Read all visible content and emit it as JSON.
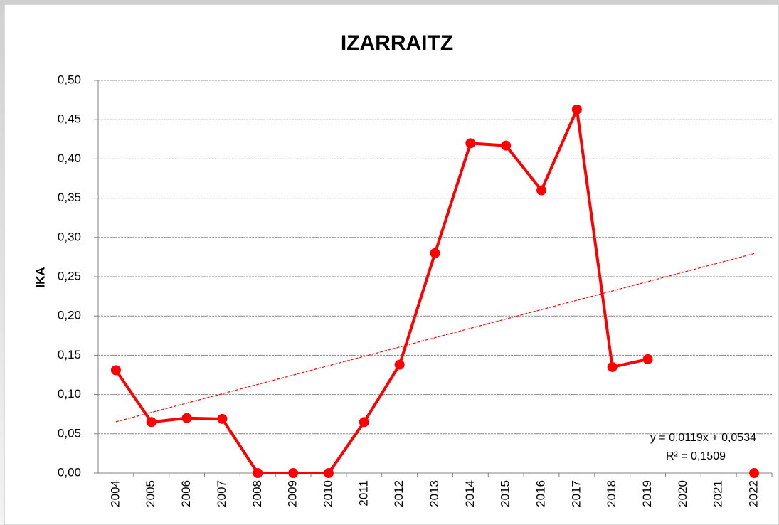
{
  "chart_data": {
    "type": "line",
    "title": "IZARRAITZ",
    "y_label": "IKA",
    "categories": [
      "2004",
      "2005",
      "2006",
      "2007",
      "2008",
      "2009",
      "2010",
      "2011",
      "2012",
      "2013",
      "2014",
      "2015",
      "2016",
      "2017",
      "2018",
      "2019",
      "2020",
      "2021",
      "2022"
    ],
    "series": [
      {
        "name": "IKA",
        "color": "#ff0000",
        "values": [
          0.131,
          0.065,
          0.07,
          0.069,
          0,
          0,
          0,
          0.065,
          0.138,
          0.28,
          0.42,
          0.417,
          0.36,
          0.463,
          0.135,
          0.145,
          null,
          null,
          0
        ]
      }
    ],
    "trendline": {
      "color": "#ff0000",
      "start": 0.0653,
      "end": 0.2795,
      "equation": "y = 0,0119x + 0,0534",
      "r2": "R² = 0,1509"
    },
    "ylim": [
      0,
      0.5
    ],
    "yticks": [
      {
        "value": 0,
        "label": "0,00"
      },
      {
        "value": 0.05,
        "label": "0,05"
      },
      {
        "value": 0.1,
        "label": "0,10"
      },
      {
        "value": 0.15,
        "label": "0,15"
      },
      {
        "value": 0.2,
        "label": "0,20"
      },
      {
        "value": 0.25,
        "label": "0,25"
      },
      {
        "value": 0.3,
        "label": "0,30"
      },
      {
        "value": 0.35,
        "label": "0,35"
      },
      {
        "value": 0.4,
        "label": "0,40"
      },
      {
        "value": 0.45,
        "label": "0,45"
      },
      {
        "value": 0.5,
        "label": "0,50"
      }
    ],
    "grid": true
  }
}
